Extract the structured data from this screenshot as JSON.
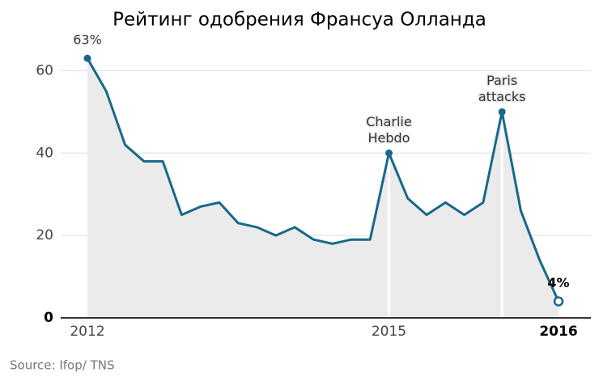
{
  "chart_data": {
    "type": "line",
    "title": "Рейтинг одобрения Франсуа Олланда",
    "source": "Source: Ifop/ TNS",
    "categories": [
      "2012",
      null,
      null,
      null,
      null,
      null,
      null,
      null,
      null,
      null,
      null,
      null,
      null,
      null,
      null,
      null,
      "2015",
      null,
      null,
      null,
      null,
      null,
      null,
      null,
      null,
      "2016"
    ],
    "values": [
      63,
      55,
      42,
      38,
      38,
      25,
      27,
      28,
      23,
      22,
      20,
      22,
      19,
      18,
      19,
      19,
      40,
      29,
      25,
      28,
      25,
      28,
      50,
      26,
      14,
      4
    ],
    "value_labels": [
      "63%",
      null,
      null,
      null,
      null,
      null,
      null,
      null,
      null,
      null,
      null,
      null,
      null,
      null,
      null,
      null,
      null,
      null,
      null,
      null,
      null,
      null,
      null,
      null,
      null,
      "4%"
    ],
    "annotations": [
      null,
      null,
      null,
      null,
      null,
      null,
      null,
      null,
      null,
      null,
      null,
      null,
      null,
      null,
      null,
      null,
      [
        "Charlie",
        "Hebdo"
      ],
      null,
      null,
      null,
      null,
      null,
      [
        "Paris",
        "attacks"
      ],
      null,
      null,
      null
    ],
    "color": "#17698a",
    "area_color": "#ebebeb",
    "ylim": [
      0,
      64
    ],
    "yticks": [
      0,
      20,
      40,
      60
    ],
    "grid": true
  }
}
